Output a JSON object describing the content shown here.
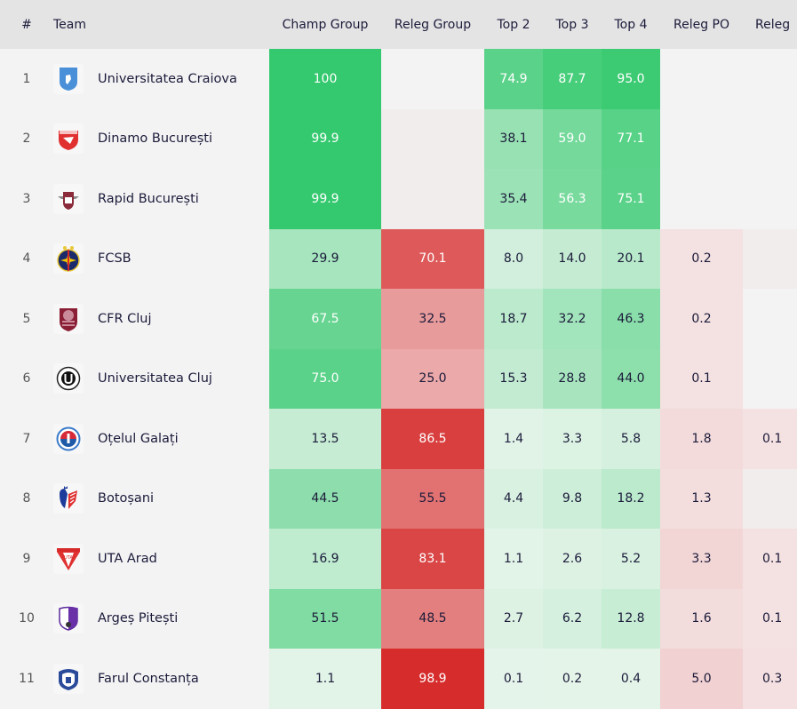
{
  "columns": {
    "rank": "#",
    "team": "Team",
    "champ_group": "Champ Group",
    "releg_group": "Releg Group",
    "top2": "Top 2",
    "top3": "Top 3",
    "top4": "Top 4",
    "releg_po": "Releg PO",
    "releg": "Releg"
  },
  "rows": [
    {
      "rank": "1",
      "team": "Universitatea Craiova",
      "logo": "craiova-logo",
      "champ_group": "100",
      "releg_group": "",
      "top2": "74.9",
      "top3": "87.7",
      "top4": "95.0",
      "releg_po": "",
      "releg": ""
    },
    {
      "rank": "2",
      "team": "Dinamo București",
      "logo": "dinamo-logo",
      "champ_group": "99.9",
      "releg_group": "",
      "top2": "38.1",
      "top3": "59.0",
      "top4": "77.1",
      "releg_po": "",
      "releg": ""
    },
    {
      "rank": "3",
      "team": "Rapid București",
      "logo": "rapid-logo",
      "champ_group": "99.9",
      "releg_group": "",
      "top2": "35.4",
      "top3": "56.3",
      "top4": "75.1",
      "releg_po": "",
      "releg": ""
    },
    {
      "rank": "4",
      "team": "FCSB",
      "logo": "fcsb-logo",
      "champ_group": "29.9",
      "releg_group": "70.1",
      "top2": "8.0",
      "top3": "14.0",
      "top4": "20.1",
      "releg_po": "0.2",
      "releg": ""
    },
    {
      "rank": "5",
      "team": "CFR Cluj",
      "logo": "cfr-logo",
      "champ_group": "67.5",
      "releg_group": "32.5",
      "top2": "18.7",
      "top3": "32.2",
      "top4": "46.3",
      "releg_po": "0.2",
      "releg": ""
    },
    {
      "rank": "6",
      "team": "Universitatea Cluj",
      "logo": "ucluj-logo",
      "champ_group": "75.0",
      "releg_group": "25.0",
      "top2": "15.3",
      "top3": "28.8",
      "top4": "44.0",
      "releg_po": "0.1",
      "releg": ""
    },
    {
      "rank": "7",
      "team": "Oțelul Galați",
      "logo": "otelul-logo",
      "champ_group": "13.5",
      "releg_group": "86.5",
      "top2": "1.4",
      "top3": "3.3",
      "top4": "5.8",
      "releg_po": "1.8",
      "releg": "0.1"
    },
    {
      "rank": "8",
      "team": "Botoșani",
      "logo": "botosani-logo",
      "champ_group": "44.5",
      "releg_group": "55.5",
      "top2": "4.4",
      "top3": "9.8",
      "top4": "18.2",
      "releg_po": "1.3",
      "releg": ""
    },
    {
      "rank": "9",
      "team": "UTA Arad",
      "logo": "uta-logo",
      "champ_group": "16.9",
      "releg_group": "83.1",
      "top2": "1.1",
      "top3": "2.6",
      "top4": "5.2",
      "releg_po": "3.3",
      "releg": "0.1"
    },
    {
      "rank": "10",
      "team": "Argeș Pitești",
      "logo": "arges-logo",
      "champ_group": "51.5",
      "releg_group": "48.5",
      "top2": "2.7",
      "top3": "6.2",
      "top4": "12.8",
      "releg_po": "1.6",
      "releg": "0.1"
    },
    {
      "rank": "11",
      "team": "Farul Constanța",
      "logo": "farul-logo",
      "champ_group": "1.1",
      "releg_group": "98.9",
      "top2": "0.1",
      "top3": "0.2",
      "top4": "0.4",
      "releg_po": "5.0",
      "releg": "0.3"
    }
  ],
  "colors": {
    "green_strong": "#34c96e",
    "red_strong": "#d62a2a",
    "neutral_bg": "#f3f3f4",
    "header_bg": "#e4e4e5",
    "text": "#1b1b3a"
  }
}
